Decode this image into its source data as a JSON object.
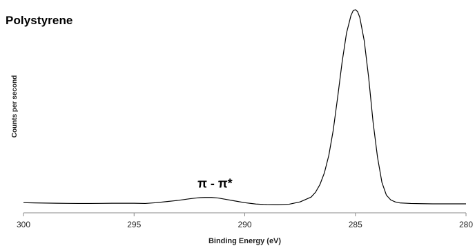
{
  "chart_data": {
    "type": "line",
    "title": "Polystyrene",
    "xlabel": "Binding Energy (eV)",
    "ylabel": "Counts per second",
    "xlim": [
      300,
      280
    ],
    "x_ticks": [
      300,
      295,
      290,
      285,
      280
    ],
    "x_reversed": true,
    "ylim": [
      0,
      100
    ],
    "grid": false,
    "legend": "none",
    "annotations": [
      {
        "text": "π - π*",
        "x": 291.5,
        "y": 7
      }
    ],
    "series": [
      {
        "x": [
          300,
          299.5,
          299,
          298.5,
          298,
          297.5,
          297,
          296.5,
          296,
          295.5,
          295,
          294.5,
          294,
          293.5,
          293,
          292.5,
          292.2,
          292,
          291.8,
          291.5,
          291.2,
          291,
          290.8,
          290.5,
          290,
          289.5,
          289,
          288.5,
          288,
          287.5,
          287,
          286.8,
          286.6,
          286.4,
          286.2,
          286,
          285.8,
          285.6,
          285.4,
          285.2,
          285.1,
          285,
          284.9,
          284.8,
          284.6,
          284.4,
          284.2,
          284,
          283.8,
          283.6,
          283.4,
          283.2,
          283,
          282.5,
          282,
          281.5,
          281,
          280.5,
          280
        ],
        "y": [
          0.6,
          0.5,
          0.4,
          0.3,
          0.25,
          0.2,
          0.2,
          0.25,
          0.3,
          0.3,
          0.3,
          0.2,
          0.6,
          1.2,
          1.8,
          2.6,
          3.0,
          3.2,
          3.3,
          3.3,
          3.0,
          2.6,
          2.2,
          1.6,
          0.6,
          -0.1,
          -0.4,
          -0.5,
          -0.2,
          1.0,
          3.5,
          6.0,
          10.0,
          16.0,
          25.0,
          38.0,
          55.0,
          73.0,
          88.0,
          97.0,
          99.5,
          100,
          99.0,
          96.0,
          84.0,
          65.0,
          42.0,
          24.0,
          11.0,
          4.5,
          2.0,
          1.0,
          0.5,
          0.2,
          0.1,
          0.0,
          0.0,
          0.0,
          0.0
        ]
      }
    ]
  }
}
